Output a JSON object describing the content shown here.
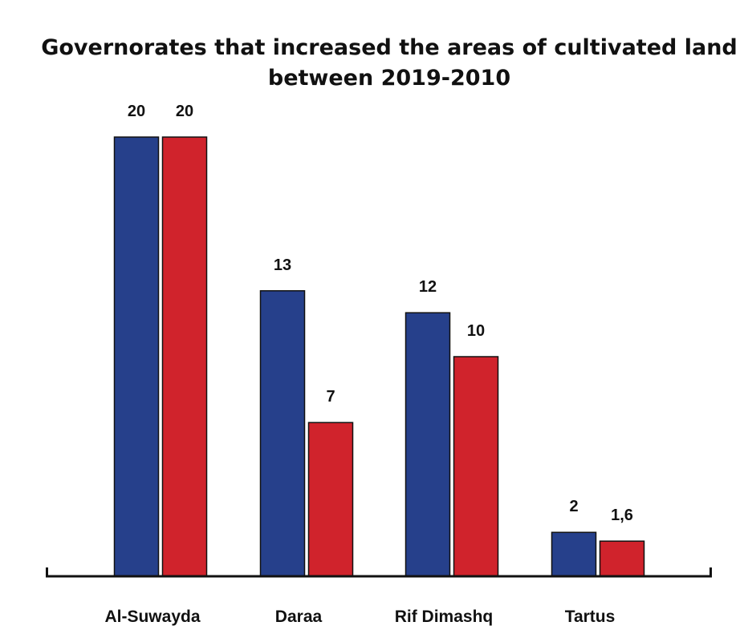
{
  "chart_data": {
    "type": "bar",
    "title_lines": [
      "Governorates that increased the areas of cultivated land",
      "between 2019-2010"
    ],
    "categories": [
      "Al-Suwayda",
      "Daraa",
      "Rif Dimashq",
      "Tartus"
    ],
    "series": [
      {
        "values": [
          20,
          13,
          12,
          2
        ],
        "labels": [
          "20",
          "13",
          "12",
          "2"
        ],
        "color": "#26408B"
      },
      {
        "values": [
          20,
          7,
          10,
          1.6
        ],
        "labels": [
          "20",
          "7",
          "10",
          "1,6"
        ],
        "color": "#D0232C"
      }
    ],
    "ylim": [
      0,
      20
    ],
    "xlabel": "",
    "ylabel": "",
    "grid": false,
    "legend": "none"
  }
}
